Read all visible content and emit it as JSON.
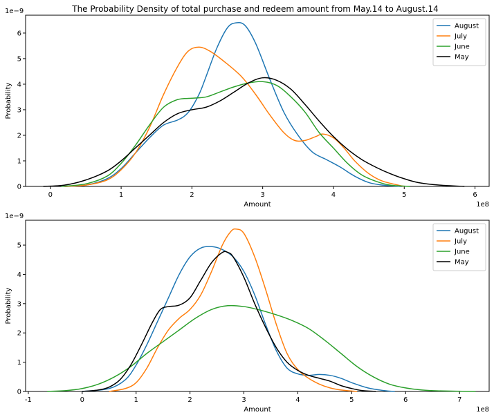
{
  "figure": {
    "title": "The Probability Density of total purchase and redeem amount from May.14 to August.14"
  },
  "colors": {
    "August": "#1f77b4",
    "July": "#ff7f0e",
    "June": "#2ca02c",
    "May": "#000000"
  },
  "chart_data": [
    {
      "type": "line",
      "title": "The Probability Density of total purchase and redeem amount from May.14 to August.14",
      "xlabel": "Amount",
      "ylabel": "Probability",
      "x_offset_label": "1e8",
      "y_offset_label": "1e−9",
      "xlim": [
        -0.35,
        6.2
      ],
      "ylim": [
        0,
        6.7
      ],
      "xticks": [
        0,
        1,
        2,
        3,
        4,
        5,
        6
      ],
      "yticks": [
        0,
        1,
        2,
        3,
        4,
        5,
        6
      ],
      "legend": "top-right",
      "grid": false,
      "series": [
        {
          "name": "August",
          "color": "#1f77b4",
          "points": [
            [
              0.2,
              0
            ],
            [
              0.5,
              0.05
            ],
            [
              0.8,
              0.3
            ],
            [
              1.0,
              0.7
            ],
            [
              1.2,
              1.3
            ],
            [
              1.4,
              1.9
            ],
            [
              1.6,
              2.4
            ],
            [
              1.8,
              2.6
            ],
            [
              1.95,
              2.9
            ],
            [
              2.1,
              3.6
            ],
            [
              2.2,
              4.3
            ],
            [
              2.35,
              5.4
            ],
            [
              2.5,
              6.2
            ],
            [
              2.62,
              6.4
            ],
            [
              2.75,
              6.3
            ],
            [
              2.9,
              5.6
            ],
            [
              3.1,
              4.2
            ],
            [
              3.3,
              2.9
            ],
            [
              3.5,
              2.0
            ],
            [
              3.7,
              1.35
            ],
            [
              3.9,
              1.05
            ],
            [
              4.1,
              0.75
            ],
            [
              4.3,
              0.4
            ],
            [
              4.5,
              0.15
            ],
            [
              4.7,
              0.05
            ],
            [
              4.95,
              0
            ]
          ]
        },
        {
          "name": "July",
          "color": "#ff7f0e",
          "points": [
            [
              0.2,
              0
            ],
            [
              0.5,
              0.05
            ],
            [
              0.8,
              0.25
            ],
            [
              1.0,
              0.65
            ],
            [
              1.2,
              1.3
            ],
            [
              1.4,
              2.3
            ],
            [
              1.6,
              3.6
            ],
            [
              1.8,
              4.7
            ],
            [
              1.95,
              5.3
            ],
            [
              2.1,
              5.45
            ],
            [
              2.25,
              5.3
            ],
            [
              2.45,
              4.9
            ],
            [
              2.7,
              4.3
            ],
            [
              2.9,
              3.6
            ],
            [
              3.1,
              2.8
            ],
            [
              3.3,
              2.1
            ],
            [
              3.45,
              1.8
            ],
            [
              3.6,
              1.8
            ],
            [
              3.75,
              1.95
            ],
            [
              3.85,
              2.05
            ],
            [
              4.0,
              1.9
            ],
            [
              4.15,
              1.5
            ],
            [
              4.3,
              1.0
            ],
            [
              4.5,
              0.5
            ],
            [
              4.7,
              0.2
            ],
            [
              5.0,
              0
            ]
          ]
        },
        {
          "name": "June",
          "color": "#2ca02c",
          "points": [
            [
              0.15,
              0
            ],
            [
              0.5,
              0.1
            ],
            [
              0.8,
              0.4
            ],
            [
              1.0,
              0.9
            ],
            [
              1.2,
              1.6
            ],
            [
              1.4,
              2.4
            ],
            [
              1.6,
              3.1
            ],
            [
              1.8,
              3.4
            ],
            [
              2.0,
              3.45
            ],
            [
              2.2,
              3.5
            ],
            [
              2.4,
              3.7
            ],
            [
              2.6,
              3.9
            ],
            [
              2.8,
              4.05
            ],
            [
              3.0,
              4.1
            ],
            [
              3.2,
              3.95
            ],
            [
              3.4,
              3.5
            ],
            [
              3.6,
              2.9
            ],
            [
              3.8,
              2.1
            ],
            [
              4.0,
              1.5
            ],
            [
              4.2,
              0.9
            ],
            [
              4.4,
              0.45
            ],
            [
              4.6,
              0.2
            ],
            [
              4.8,
              0.05
            ],
            [
              5.08,
              0
            ]
          ]
        },
        {
          "name": "May",
          "color": "#000000",
          "points": [
            [
              -0.1,
              0
            ],
            [
              0.2,
              0.05
            ],
            [
              0.5,
              0.25
            ],
            [
              0.8,
              0.6
            ],
            [
              1.0,
              1.0
            ],
            [
              1.2,
              1.5
            ],
            [
              1.4,
              2.0
            ],
            [
              1.6,
              2.5
            ],
            [
              1.8,
              2.85
            ],
            [
              2.0,
              3.0
            ],
            [
              2.2,
              3.1
            ],
            [
              2.4,
              3.35
            ],
            [
              2.6,
              3.7
            ],
            [
              2.8,
              4.05
            ],
            [
              3.0,
              4.25
            ],
            [
              3.2,
              4.15
            ],
            [
              3.4,
              3.8
            ],
            [
              3.6,
              3.2
            ],
            [
              3.8,
              2.55
            ],
            [
              4.0,
              1.95
            ],
            [
              4.2,
              1.45
            ],
            [
              4.4,
              1.05
            ],
            [
              4.6,
              0.75
            ],
            [
              4.8,
              0.5
            ],
            [
              5.0,
              0.3
            ],
            [
              5.2,
              0.15
            ],
            [
              5.5,
              0.05
            ],
            [
              5.85,
              0
            ]
          ]
        }
      ]
    },
    {
      "type": "line",
      "title": "",
      "xlabel": "Amount",
      "ylabel": "Probability",
      "x_offset_label": "1e8",
      "y_offset_label": "1e−9",
      "xlim": [
        -1.05,
        7.55
      ],
      "ylim": [
        0,
        5.85
      ],
      "xticks": [
        -1,
        0,
        1,
        2,
        3,
        4,
        5,
        6,
        7
      ],
      "yticks": [
        0,
        1,
        2,
        3,
        4,
        5
      ],
      "legend": "top-right",
      "grid": false,
      "series": [
        {
          "name": "August",
          "color": "#1f77b4",
          "points": [
            [
              0.0,
              0
            ],
            [
              0.5,
              0.1
            ],
            [
              0.8,
              0.4
            ],
            [
              1.0,
              0.9
            ],
            [
              1.2,
              1.6
            ],
            [
              1.4,
              2.4
            ],
            [
              1.6,
              3.2
            ],
            [
              1.8,
              4.0
            ],
            [
              2.0,
              4.6
            ],
            [
              2.2,
              4.9
            ],
            [
              2.4,
              4.95
            ],
            [
              2.6,
              4.85
            ],
            [
              2.8,
              4.6
            ],
            [
              3.0,
              4.1
            ],
            [
              3.2,
              3.3
            ],
            [
              3.4,
              2.3
            ],
            [
              3.6,
              1.4
            ],
            [
              3.8,
              0.8
            ],
            [
              4.0,
              0.6
            ],
            [
              4.2,
              0.55
            ],
            [
              4.4,
              0.58
            ],
            [
              4.6,
              0.55
            ],
            [
              4.8,
              0.45
            ],
            [
              5.0,
              0.3
            ],
            [
              5.3,
              0.12
            ],
            [
              5.6,
              0.03
            ],
            [
              5.8,
              0
            ]
          ]
        },
        {
          "name": "July",
          "color": "#ff7f0e",
          "points": [
            [
              0.5,
              0
            ],
            [
              0.8,
              0.1
            ],
            [
              1.0,
              0.3
            ],
            [
              1.2,
              0.8
            ],
            [
              1.4,
              1.5
            ],
            [
              1.6,
              2.1
            ],
            [
              1.8,
              2.5
            ],
            [
              2.0,
              2.8
            ],
            [
              2.2,
              3.3
            ],
            [
              2.4,
              4.1
            ],
            [
              2.6,
              5.0
            ],
            [
              2.75,
              5.45
            ],
            [
              2.85,
              5.55
            ],
            [
              3.0,
              5.4
            ],
            [
              3.2,
              4.6
            ],
            [
              3.4,
              3.5
            ],
            [
              3.6,
              2.3
            ],
            [
              3.8,
              1.3
            ],
            [
              4.0,
              0.75
            ],
            [
              4.2,
              0.45
            ],
            [
              4.4,
              0.25
            ],
            [
              4.6,
              0.12
            ],
            [
              4.8,
              0.05
            ],
            [
              5.1,
              0
            ]
          ]
        },
        {
          "name": "June",
          "color": "#2ca02c",
          "points": [
            [
              -0.65,
              0
            ],
            [
              -0.3,
              0.03
            ],
            [
              0.0,
              0.1
            ],
            [
              0.3,
              0.25
            ],
            [
              0.6,
              0.5
            ],
            [
              0.9,
              0.85
            ],
            [
              1.2,
              1.3
            ],
            [
              1.5,
              1.7
            ],
            [
              1.8,
              2.1
            ],
            [
              2.1,
              2.5
            ],
            [
              2.4,
              2.8
            ],
            [
              2.7,
              2.93
            ],
            [
              3.0,
              2.9
            ],
            [
              3.3,
              2.78
            ],
            [
              3.6,
              2.62
            ],
            [
              3.9,
              2.42
            ],
            [
              4.2,
              2.15
            ],
            [
              4.5,
              1.75
            ],
            [
              4.8,
              1.3
            ],
            [
              5.1,
              0.85
            ],
            [
              5.4,
              0.5
            ],
            [
              5.7,
              0.25
            ],
            [
              6.0,
              0.12
            ],
            [
              6.3,
              0.05
            ],
            [
              6.6,
              0.02
            ],
            [
              7.3,
              0
            ]
          ]
        },
        {
          "name": "May",
          "color": "#000000",
          "points": [
            [
              0.0,
              0
            ],
            [
              0.3,
              0.05
            ],
            [
              0.5,
              0.15
            ],
            [
              0.7,
              0.4
            ],
            [
              0.9,
              0.9
            ],
            [
              1.1,
              1.6
            ],
            [
              1.3,
              2.35
            ],
            [
              1.45,
              2.8
            ],
            [
              1.6,
              2.9
            ],
            [
              1.8,
              2.95
            ],
            [
              2.0,
              3.2
            ],
            [
              2.2,
              3.8
            ],
            [
              2.4,
              4.4
            ],
            [
              2.6,
              4.75
            ],
            [
              2.7,
              4.75
            ],
            [
              2.8,
              4.6
            ],
            [
              3.0,
              3.9
            ],
            [
              3.2,
              3.0
            ],
            [
              3.4,
              2.2
            ],
            [
              3.6,
              1.5
            ],
            [
              3.8,
              1.0
            ],
            [
              4.0,
              0.72
            ],
            [
              4.2,
              0.55
            ],
            [
              4.4,
              0.45
            ],
            [
              4.6,
              0.35
            ],
            [
              4.8,
              0.2
            ],
            [
              5.0,
              0.1
            ],
            [
              5.2,
              0.03
            ],
            [
              5.45,
              0
            ]
          ]
        }
      ]
    }
  ]
}
